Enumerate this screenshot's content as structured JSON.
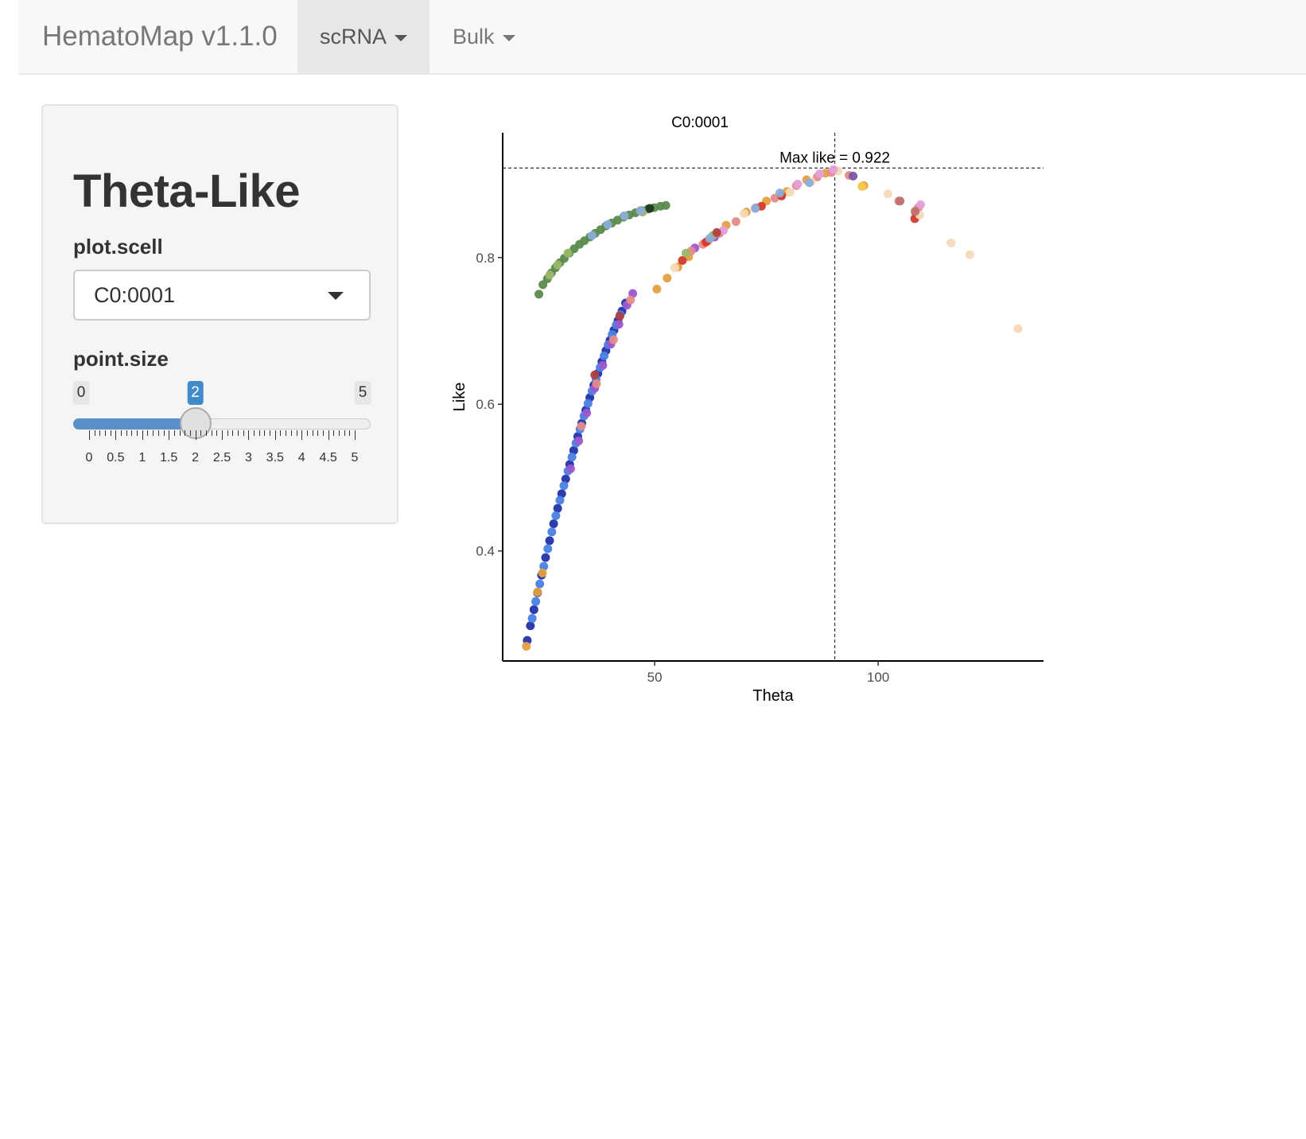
{
  "navbar": {
    "brand": "HematoMap v1.1.0",
    "items": [
      {
        "label": "scRNA",
        "active": true
      },
      {
        "label": "Bulk",
        "active": false
      }
    ]
  },
  "sidebar": {
    "title": "Theta-Like",
    "select": {
      "label": "plot.scell",
      "value": "C0:0001"
    },
    "slider": {
      "label": "point.size",
      "min": 0,
      "max": 5,
      "value": 2,
      "step": 0.5,
      "min_label": "0",
      "max_label": "5",
      "value_label": "2",
      "tick_labels": [
        "0",
        "0.5",
        "1",
        "1.5",
        "2",
        "2.5",
        "3",
        "3.5",
        "4",
        "4.5",
        "5"
      ]
    }
  },
  "colors": {
    "accent": "#428bca",
    "navbar_bg": "#f8f8f8",
    "nav_active_bg": "#e7e7e7"
  },
  "chart_data": {
    "type": "scatter",
    "title": "C0:0001",
    "xlabel": "Theta",
    "ylabel": "Like",
    "xlim": [
      16,
      137
    ],
    "ylim": [
      0.25,
      0.97
    ],
    "xticks": [
      {
        "value": 50,
        "label": "50"
      },
      {
        "value": 100,
        "label": "100"
      }
    ],
    "yticks": [
      {
        "value": 0.4,
        "label": "0.4"
      },
      {
        "value": 0.6,
        "label": "0.6"
      },
      {
        "value": 0.8,
        "label": "0.8"
      }
    ],
    "grid": false,
    "legend": "none",
    "annotation": {
      "text": "Max like = 0.922",
      "x": 90.3,
      "y": 0.922
    },
    "reference_lines": {
      "vline_x": 90.3,
      "hline_y": 0.922
    },
    "series": [
      {
        "color": "#5b8a4e",
        "points": [
          [
            24.1,
            0.75
          ],
          [
            25.0,
            0.763
          ],
          [
            26.0,
            0.771
          ],
          [
            26.9,
            0.779
          ],
          [
            27.8,
            0.786
          ],
          [
            28.8,
            0.793
          ],
          [
            29.8,
            0.799
          ],
          [
            30.9,
            0.806
          ],
          [
            32.0,
            0.812
          ],
          [
            33.2,
            0.818
          ],
          [
            34.3,
            0.823
          ],
          [
            35.5,
            0.828
          ],
          [
            36.7,
            0.833
          ],
          [
            37.9,
            0.838
          ],
          [
            39.1,
            0.843
          ],
          [
            40.4,
            0.847
          ],
          [
            41.7,
            0.851
          ],
          [
            43.0,
            0.855
          ],
          [
            44.3,
            0.858
          ],
          [
            45.7,
            0.861
          ],
          [
            47.1,
            0.864
          ],
          [
            48.5,
            0.866
          ],
          [
            49.9,
            0.868
          ],
          [
            51.3,
            0.87
          ],
          [
            52.5,
            0.871
          ]
        ]
      },
      {
        "color": "#2233aa",
        "points": [
          [
            21.5,
            0.278
          ],
          [
            22.2,
            0.298
          ],
          [
            23.0,
            0.32
          ],
          [
            23.8,
            0.343
          ],
          [
            24.7,
            0.367
          ],
          [
            25.6,
            0.391
          ],
          [
            26.5,
            0.414
          ],
          [
            27.4,
            0.437
          ],
          [
            28.3,
            0.458
          ],
          [
            29.2,
            0.478
          ],
          [
            30.1,
            0.498
          ],
          [
            31.0,
            0.518
          ],
          [
            31.9,
            0.537
          ],
          [
            32.8,
            0.556
          ],
          [
            33.7,
            0.574
          ],
          [
            34.6,
            0.592
          ],
          [
            35.5,
            0.609
          ],
          [
            36.4,
            0.626
          ],
          [
            37.3,
            0.642
          ],
          [
            38.2,
            0.658
          ],
          [
            39.1,
            0.673
          ],
          [
            40.0,
            0.687
          ],
          [
            40.9,
            0.701
          ],
          [
            41.8,
            0.714
          ],
          [
            42.7,
            0.727
          ],
          [
            43.5,
            0.738
          ]
        ]
      },
      {
        "color": "#4a7fe0",
        "points": [
          [
            22.6,
            0.308
          ],
          [
            23.4,
            0.331
          ],
          [
            24.3,
            0.355
          ],
          [
            25.2,
            0.379
          ],
          [
            26.1,
            0.403
          ],
          [
            27.0,
            0.426
          ],
          [
            27.9,
            0.448
          ],
          [
            28.8,
            0.469
          ],
          [
            29.7,
            0.489
          ],
          [
            30.6,
            0.509
          ],
          [
            31.5,
            0.528
          ],
          [
            32.4,
            0.547
          ],
          [
            33.3,
            0.566
          ],
          [
            34.2,
            0.584
          ],
          [
            35.1,
            0.601
          ],
          [
            36.0,
            0.618
          ],
          [
            36.9,
            0.634
          ],
          [
            37.8,
            0.65
          ],
          [
            38.7,
            0.666
          ],
          [
            39.6,
            0.681
          ],
          [
            40.5,
            0.695
          ],
          [
            41.4,
            0.708
          ],
          [
            42.3,
            0.722
          ]
        ]
      },
      {
        "color": "#9b59d0",
        "points": [
          [
            31.2,
            0.512
          ],
          [
            33.0,
            0.55
          ],
          [
            34.8,
            0.588
          ],
          [
            36.6,
            0.622
          ],
          [
            38.4,
            0.653
          ],
          [
            40.2,
            0.682
          ],
          [
            42.0,
            0.709
          ],
          [
            43.8,
            0.735
          ],
          [
            45.1,
            0.751
          ],
          [
            59.0,
            0.813
          ],
          [
            63.4,
            0.828
          ]
        ]
      },
      {
        "color": "#e5a040",
        "points": [
          [
            21.3,
            0.27
          ],
          [
            23.8,
            0.344
          ],
          [
            24.9,
            0.37
          ],
          [
            50.5,
            0.757
          ],
          [
            52.8,
            0.772
          ],
          [
            55.2,
            0.787
          ],
          [
            57.6,
            0.801
          ],
          [
            62.0,
            0.823
          ],
          [
            66.0,
            0.844
          ],
          [
            70.5,
            0.862
          ],
          [
            75.0,
            0.877
          ],
          [
            79.6,
            0.89
          ],
          [
            84.0,
            0.906
          ],
          [
            88.2,
            0.915
          ],
          [
            96.8,
            0.898
          ],
          [
            108.3,
            0.862
          ]
        ]
      },
      {
        "color": "#e58a8a",
        "points": [
          [
            33.6,
            0.57
          ],
          [
            37.0,
            0.628
          ],
          [
            40.8,
            0.688
          ],
          [
            44.6,
            0.742
          ],
          [
            58.2,
            0.809
          ],
          [
            60.8,
            0.818
          ],
          [
            64.5,
            0.833
          ],
          [
            68.2,
            0.849
          ],
          [
            72.7,
            0.868
          ],
          [
            76.9,
            0.881
          ],
          [
            81.7,
            0.898
          ],
          [
            86.4,
            0.91
          ],
          [
            89.5,
            0.916
          ],
          [
            93.5,
            0.912
          ],
          [
            104.6,
            0.877
          ],
          [
            109.0,
            0.868
          ]
        ]
      },
      {
        "color": "#d23a2a",
        "points": [
          [
            56.2,
            0.796
          ],
          [
            61.5,
            0.821
          ],
          [
            73.9,
            0.87
          ],
          [
            78.4,
            0.884
          ],
          [
            108.2,
            0.853
          ]
        ]
      },
      {
        "color": "#f5d9b8",
        "points": [
          [
            54.5,
            0.786
          ],
          [
            70.0,
            0.86
          ],
          [
            80.3,
            0.889
          ],
          [
            85.0,
            0.903
          ],
          [
            91.0,
            0.918
          ],
          [
            102.2,
            0.887
          ],
          [
            109.3,
            0.858
          ],
          [
            116.3,
            0.82
          ],
          [
            120.5,
            0.804
          ],
          [
            131.3,
            0.703
          ]
        ]
      },
      {
        "color": "#e5a0d8",
        "points": [
          [
            65.4,
            0.837
          ],
          [
            82.0,
            0.9
          ],
          [
            86.9,
            0.914
          ],
          [
            90.0,
            0.92
          ],
          [
            109.5,
            0.872
          ]
        ]
      },
      {
        "color": "#9ab86a",
        "points": [
          [
            26.5,
            0.776
          ],
          [
            28.3,
            0.79
          ],
          [
            30.6,
            0.806
          ],
          [
            47.3,
            0.862
          ],
          [
            57.0,
            0.806
          ],
          [
            63.0,
            0.83
          ]
        ]
      },
      {
        "color": "#8aaed8",
        "points": [
          [
            36.0,
            0.83
          ],
          [
            39.5,
            0.845
          ],
          [
            43.2,
            0.857
          ],
          [
            46.8,
            0.864
          ],
          [
            62.3,
            0.826
          ],
          [
            72.5,
            0.867
          ],
          [
            78.0,
            0.888
          ],
          [
            84.6,
            0.902
          ]
        ]
      },
      {
        "color": "#1e3a20",
        "points": [
          [
            48.9,
            0.867
          ]
        ]
      },
      {
        "color": "#b04040",
        "points": [
          [
            36.6,
            0.64
          ],
          [
            42.2,
            0.72
          ],
          [
            63.9,
            0.834
          ]
        ]
      },
      {
        "color": "#7b55a8",
        "points": [
          [
            94.4,
            0.911
          ]
        ]
      },
      {
        "color": "#f2c84a",
        "points": [
          [
            96.4,
            0.897
          ]
        ]
      },
      {
        "color": "#c07070",
        "points": [
          [
            104.9,
            0.877
          ],
          [
            108.3,
            0.863
          ]
        ]
      }
    ]
  }
}
